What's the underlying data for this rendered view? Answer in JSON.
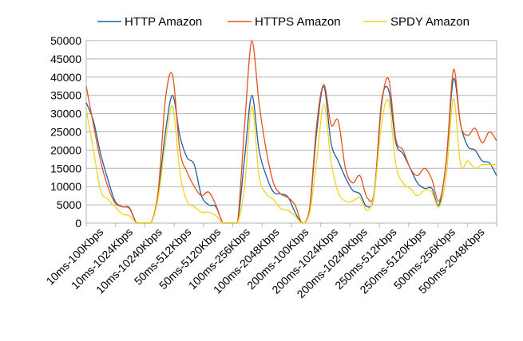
{
  "chart_data": {
    "type": "line",
    "title": "",
    "xlabel": "",
    "ylabel": "",
    "ylim": [
      0,
      50000
    ],
    "yticks": [
      "0",
      "5000",
      "10000",
      "15000",
      "20000",
      "25000",
      "30000",
      "35000",
      "40000",
      "45000",
      "50000"
    ],
    "xticks": [
      "10ms-100Kbps",
      "10ms-1024Kbps",
      "10ms-10240Kbps",
      "50ms-512Kbps",
      "50ms-5120Kbps",
      "100ms-256Kbps",
      "100ms-2048Kbps",
      "200ms-100Kbps",
      "200ms-1024Kbps",
      "200ms-10240Kbps",
      "250ms-512Kbps",
      "250ms-5120Kbps",
      "500ms-256Kbps",
      "500ms-2048Kbps"
    ],
    "grid": true,
    "legend_position": "top",
    "series": [
      {
        "name": "HTTP Amazon",
        "color": "#1f5fa0",
        "values": [
          33000,
          28000,
          19000,
          12000,
          6000,
          4500,
          4200,
          0,
          0,
          0,
          8000,
          25000,
          35000,
          24000,
          18000,
          16000,
          7500,
          5000,
          4500,
          0,
          0,
          0,
          18000,
          35000,
          20000,
          13000,
          8500,
          8000,
          7200,
          3000,
          0,
          3500,
          25000,
          37500,
          22000,
          17000,
          12500,
          9000,
          8000,
          4500,
          8000,
          33000,
          36500,
          22000,
          19000,
          15000,
          11000,
          9500,
          9500,
          5000,
          17000,
          39500,
          27000,
          21000,
          20000,
          17000,
          16500,
          13000
        ]
      },
      {
        "name": "HTTPS Amazon",
        "color": "#e2531a",
        "values": [
          37500,
          27000,
          17000,
          10000,
          5500,
          4500,
          4000,
          0,
          0,
          0,
          9000,
          34000,
          40500,
          20000,
          14000,
          10000,
          7500,
          8500,
          5000,
          0,
          0,
          0,
          27000,
          50000,
          33000,
          20000,
          11000,
          8000,
          7000,
          5000,
          0,
          3500,
          27000,
          38000,
          27000,
          28000,
          15000,
          11000,
          13000,
          7000,
          8500,
          32000,
          39500,
          23000,
          20000,
          15000,
          13000,
          15000,
          12000,
          6000,
          17000,
          42000,
          27000,
          24000,
          26000,
          22000,
          25000,
          22500
        ]
      },
      {
        "name": "SPDY Amazon",
        "color": "#f2d41a",
        "values": [
          31000,
          20000,
          9000,
          6500,
          4500,
          2500,
          2000,
          0,
          0,
          0,
          7000,
          22000,
          32000,
          14000,
          6000,
          4500,
          3000,
          3000,
          2000,
          0,
          0,
          0,
          10000,
          32000,
          13000,
          8000,
          6500,
          4000,
          3500,
          2000,
          0,
          2500,
          17000,
          32500,
          17000,
          8500,
          6000,
          6000,
          7000,
          3500,
          8000,
          27000,
          33500,
          16000,
          11000,
          9500,
          7500,
          9000,
          8500,
          4500,
          13000,
          34000,
          16000,
          17000,
          15000,
          16000,
          16000,
          16000
        ]
      }
    ]
  }
}
